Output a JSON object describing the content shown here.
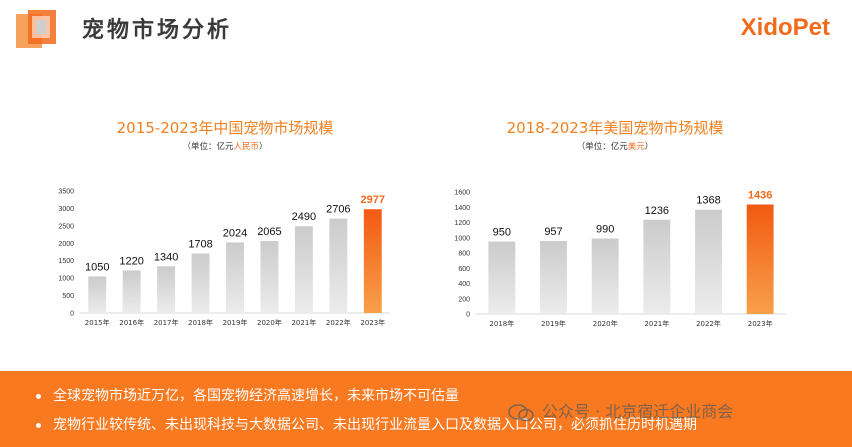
{
  "header": {
    "title": "宠物市场分析",
    "brand": "XidoPet"
  },
  "charts": [
    {
      "title": "2015-2023年中国宠物市场规模",
      "unit_prefix": "（单位：亿元",
      "unit_highlight": "人民币",
      "unit_suffix": "）"
    },
    {
      "title": "2018-2023年美国宠物市场规模",
      "unit_prefix": "（单位：亿元",
      "unit_highlight": "美元",
      "unit_suffix": "）"
    }
  ],
  "chart_data": [
    {
      "type": "bar",
      "title": "2015-2023年中国宠物市场规模",
      "categories": [
        "2015年",
        "2016年",
        "2017年",
        "2018年",
        "2019年",
        "2020年",
        "2021年",
        "2022年",
        "2023年"
      ],
      "values": [
        1050,
        1220,
        1340,
        1708,
        2024,
        2065,
        2490,
        2706,
        2977
      ],
      "yticks": [
        0,
        500,
        1000,
        1500,
        2000,
        2500,
        3000,
        3500
      ],
      "ylim": [
        0,
        3500
      ],
      "highlight_index": 8,
      "colors": {
        "bar": "#d9d9d9",
        "highlight": "#f26a1b",
        "label": "#111111",
        "highlight_label": "#f26a1b"
      }
    },
    {
      "type": "bar",
      "title": "2018-2023年美国宠物市场规模",
      "categories": [
        "2018年",
        "2019年",
        "2020年",
        "2021年",
        "2022年",
        "2023年"
      ],
      "values": [
        950,
        957,
        990,
        1236,
        1368,
        1436
      ],
      "yticks": [
        0,
        200,
        400,
        600,
        800,
        1000,
        1200,
        1400,
        1600
      ],
      "ylim": [
        0,
        1600
      ],
      "highlight_index": 5,
      "colors": {
        "bar": "#d9d9d9",
        "highlight": "#f26a1b",
        "label": "#111111",
        "highlight_label": "#f26a1b"
      }
    }
  ],
  "banner": {
    "bullets": [
      "全球宠物市场近万亿，各国宠物经济高速增长，未来市场不可估量",
      "宠物行业较传统、未出现科技与大数据公司、未出现行业流量入口及数据入口公司，必须抓住历时机遇期"
    ],
    "watermark": "公众号 · 北京宿迁企业商会"
  }
}
